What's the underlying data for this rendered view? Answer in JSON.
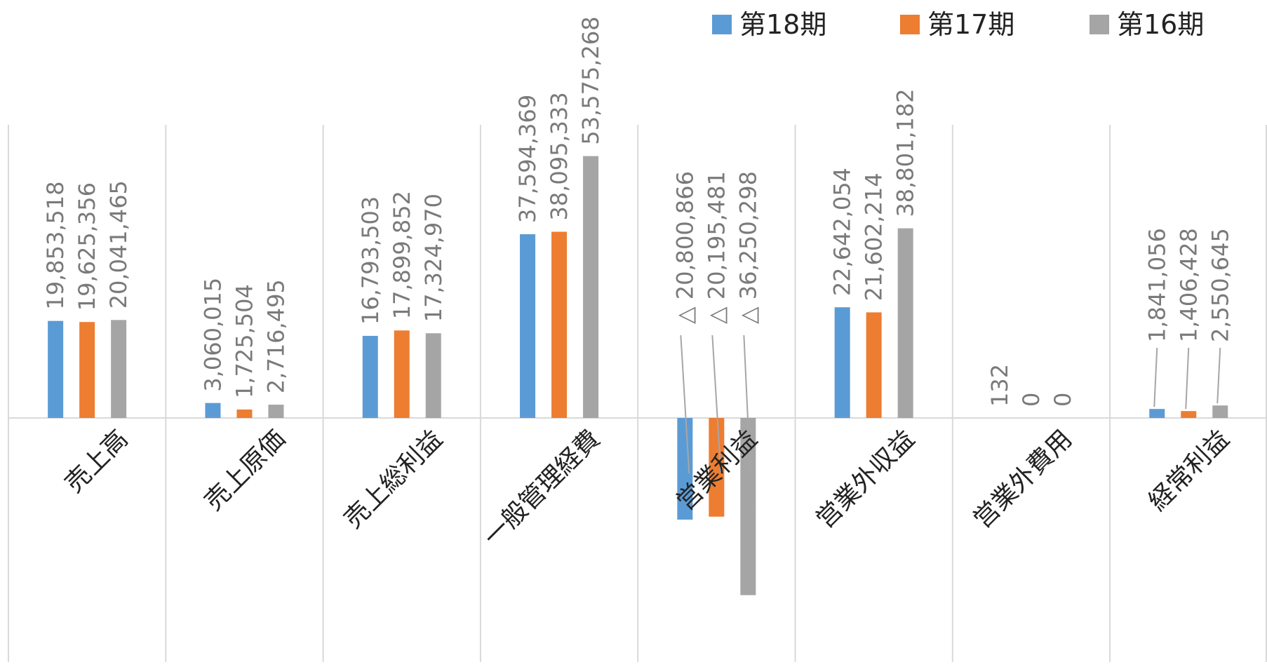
{
  "chart_data": {
    "type": "bar",
    "categories": [
      "売上高",
      "売上原価",
      "売上総利益",
      "一般管理経費",
      "営業利益",
      "営業外収益",
      "営業外費用",
      "経常利益"
    ],
    "series": [
      {
        "name": "第18期",
        "color": "#5b9bd5",
        "values": [
          19853518,
          3060015,
          16793503,
          37594369,
          -20800866,
          22642054,
          132,
          1841056
        ],
        "labels": [
          "19,853,518",
          "3,060,015",
          "16,793,503",
          "37,594,369",
          "△ 20,800,866",
          "22,642,054",
          "132",
          "1,841,056"
        ]
      },
      {
        "name": "第17期",
        "color": "#ed7d31",
        "values": [
          19625356,
          1725504,
          17899852,
          38095333,
          -20195481,
          21602214,
          0,
          1406428
        ],
        "labels": [
          "19,625,356",
          "1,725,504",
          "17,899,852",
          "38,095,333",
          "△ 20,195,481",
          "21,602,214",
          "0",
          "1,406,428"
        ]
      },
      {
        "name": "第16期",
        "color": "#a5a5a5",
        "values": [
          20041465,
          2716495,
          17324970,
          53575268,
          -36250298,
          38801182,
          0,
          2550645
        ],
        "labels": [
          "20,041,465",
          "2,716,495",
          "17,324,970",
          "53,575,268",
          "△ 36,250,298",
          "38,801,182",
          "0",
          "2,550,645"
        ]
      }
    ],
    "legend": "top-right",
    "grid": "vertical-category-separators"
  }
}
